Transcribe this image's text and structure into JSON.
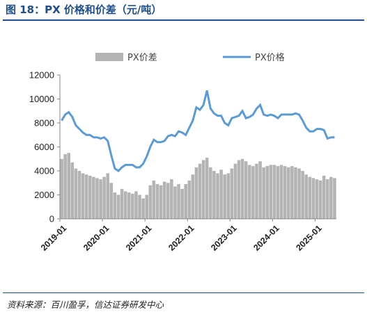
{
  "figure": {
    "title": "图 18：PX 价格和价差（元/吨）",
    "source": "资料来源：百川盈孚，信达证券研发中心"
  },
  "colors": {
    "title_blue": "#1f4e8c",
    "price_line": "#5b9bd5",
    "spread_bars": "#b4b4b4"
  },
  "chart_data": {
    "type": "bar+line",
    "x_axis": {
      "type": "date",
      "range": [
        "2019-01",
        "2025-06"
      ],
      "tick_labels": [
        "2019-01",
        "2020-01",
        "2021-01",
        "2022-01",
        "2023-01",
        "2024-01",
        "2025-01"
      ]
    },
    "y_axis": {
      "range": [
        0,
        12000
      ],
      "tick_labels": [
        "0",
        "2000",
        "4000",
        "6000",
        "8000",
        "10000",
        "12000"
      ]
    },
    "grid": false,
    "legend_position": "top",
    "series": [
      {
        "name": "PX价差",
        "kind": "bar",
        "points": [
          [
            "2019-01",
            5000
          ],
          [
            "2019-02",
            5400
          ],
          [
            "2019-03",
            5500
          ],
          [
            "2019-04",
            4700
          ],
          [
            "2019-05",
            4200
          ],
          [
            "2019-06",
            4000
          ],
          [
            "2019-07",
            3800
          ],
          [
            "2019-08",
            3700
          ],
          [
            "2019-09",
            3600
          ],
          [
            "2019-10",
            3500
          ],
          [
            "2019-11",
            3400
          ],
          [
            "2019-12",
            3300
          ],
          [
            "2020-01",
            3500
          ],
          [
            "2020-02",
            3800
          ],
          [
            "2020-03",
            3000
          ],
          [
            "2020-04",
            2200
          ],
          [
            "2020-05",
            2000
          ],
          [
            "2020-06",
            2500
          ],
          [
            "2020-07",
            2300
          ],
          [
            "2020-08",
            2200
          ],
          [
            "2020-09",
            2100
          ],
          [
            "2020-10",
            2300
          ],
          [
            "2020-11",
            2000
          ],
          [
            "2020-12",
            1700
          ],
          [
            "2021-01",
            2000
          ],
          [
            "2021-02",
            2800
          ],
          [
            "2021-03",
            3200
          ],
          [
            "2021-04",
            2900
          ],
          [
            "2021-05",
            2800
          ],
          [
            "2021-06",
            3100
          ],
          [
            "2021-07",
            3000
          ],
          [
            "2021-08",
            3300
          ],
          [
            "2021-09",
            2700
          ],
          [
            "2021-10",
            2900
          ],
          [
            "2021-11",
            2500
          ],
          [
            "2021-12",
            2900
          ],
          [
            "2022-01",
            3200
          ],
          [
            "2022-02",
            3700
          ],
          [
            "2022-03",
            4300
          ],
          [
            "2022-04",
            4600
          ],
          [
            "2022-05",
            4900
          ],
          [
            "2022-06",
            5100
          ],
          [
            "2022-07",
            4300
          ],
          [
            "2022-08",
            4000
          ],
          [
            "2022-09",
            3800
          ],
          [
            "2022-10",
            4100
          ],
          [
            "2022-11",
            3700
          ],
          [
            "2022-12",
            3800
          ],
          [
            "2023-01",
            4200
          ],
          [
            "2023-02",
            4600
          ],
          [
            "2023-03",
            4900
          ],
          [
            "2023-04",
            5000
          ],
          [
            "2023-05",
            4800
          ],
          [
            "2023-06",
            4500
          ],
          [
            "2023-07",
            4400
          ],
          [
            "2023-08",
            4600
          ],
          [
            "2023-09",
            4800
          ],
          [
            "2023-10",
            4300
          ],
          [
            "2023-11",
            4400
          ],
          [
            "2023-12",
            4500
          ],
          [
            "2024-01",
            4500
          ],
          [
            "2024-02",
            4400
          ],
          [
            "2024-03",
            4500
          ],
          [
            "2024-04",
            4400
          ],
          [
            "2024-05",
            4300
          ],
          [
            "2024-06",
            4400
          ],
          [
            "2024-07",
            4300
          ],
          [
            "2024-08",
            4200
          ],
          [
            "2024-09",
            4000
          ],
          [
            "2024-10",
            3700
          ],
          [
            "2024-11",
            3500
          ],
          [
            "2024-12",
            3400
          ],
          [
            "2025-01",
            3300
          ],
          [
            "2025-02",
            3200
          ],
          [
            "2025-03",
            3600
          ],
          [
            "2025-04",
            3300
          ],
          [
            "2025-05",
            3500
          ],
          [
            "2025-06",
            3400
          ]
        ]
      },
      {
        "name": "PX价格",
        "kind": "line",
        "points": [
          [
            "2019-01",
            8200
          ],
          [
            "2019-02",
            8700
          ],
          [
            "2019-03",
            8900
          ],
          [
            "2019-04",
            8500
          ],
          [
            "2019-05",
            7800
          ],
          [
            "2019-06",
            7500
          ],
          [
            "2019-07",
            7200
          ],
          [
            "2019-08",
            7000
          ],
          [
            "2019-09",
            7000
          ],
          [
            "2019-10",
            6800
          ],
          [
            "2019-11",
            6800
          ],
          [
            "2019-12",
            6700
          ],
          [
            "2020-01",
            6800
          ],
          [
            "2020-02",
            6500
          ],
          [
            "2020-03",
            5300
          ],
          [
            "2020-04",
            4200
          ],
          [
            "2020-05",
            4000
          ],
          [
            "2020-06",
            4300
          ],
          [
            "2020-07",
            4500
          ],
          [
            "2020-08",
            4500
          ],
          [
            "2020-09",
            4500
          ],
          [
            "2020-10",
            4300
          ],
          [
            "2020-11",
            4300
          ],
          [
            "2020-12",
            4600
          ],
          [
            "2021-01",
            5200
          ],
          [
            "2021-02",
            6000
          ],
          [
            "2021-03",
            6600
          ],
          [
            "2021-04",
            6400
          ],
          [
            "2021-05",
            6400
          ],
          [
            "2021-06",
            6500
          ],
          [
            "2021-07",
            6900
          ],
          [
            "2021-08",
            7000
          ],
          [
            "2021-09",
            6900
          ],
          [
            "2021-10",
            7300
          ],
          [
            "2021-11",
            7200
          ],
          [
            "2021-12",
            7000
          ],
          [
            "2022-01",
            7600
          ],
          [
            "2022-02",
            8200
          ],
          [
            "2022-03",
            9300
          ],
          [
            "2022-04",
            9100
          ],
          [
            "2022-05",
            9500
          ],
          [
            "2022-06",
            10700
          ],
          [
            "2022-07",
            9200
          ],
          [
            "2022-08",
            8800
          ],
          [
            "2022-09",
            8600
          ],
          [
            "2022-10",
            8600
          ],
          [
            "2022-11",
            8000
          ],
          [
            "2022-12",
            7800
          ],
          [
            "2023-01",
            8400
          ],
          [
            "2023-02",
            8500
          ],
          [
            "2023-03",
            8600
          ],
          [
            "2023-04",
            9000
          ],
          [
            "2023-05",
            8400
          ],
          [
            "2023-06",
            8500
          ],
          [
            "2023-07",
            8700
          ],
          [
            "2023-08",
            9200
          ],
          [
            "2023-09",
            9500
          ],
          [
            "2023-10",
            8700
          ],
          [
            "2023-11",
            8600
          ],
          [
            "2023-12",
            8700
          ],
          [
            "2024-01",
            8600
          ],
          [
            "2024-02",
            8400
          ],
          [
            "2024-03",
            8700
          ],
          [
            "2024-04",
            8700
          ],
          [
            "2024-05",
            8700
          ],
          [
            "2024-06",
            8700
          ],
          [
            "2024-07",
            8800
          ],
          [
            "2024-08",
            8700
          ],
          [
            "2024-09",
            8200
          ],
          [
            "2024-10",
            7600
          ],
          [
            "2024-11",
            7300
          ],
          [
            "2024-12",
            7300
          ],
          [
            "2025-01",
            7500
          ],
          [
            "2025-02",
            7500
          ],
          [
            "2025-03",
            7400
          ],
          [
            "2025-04",
            6700
          ],
          [
            "2025-05",
            6800
          ],
          [
            "2025-06",
            6800
          ]
        ]
      }
    ]
  }
}
